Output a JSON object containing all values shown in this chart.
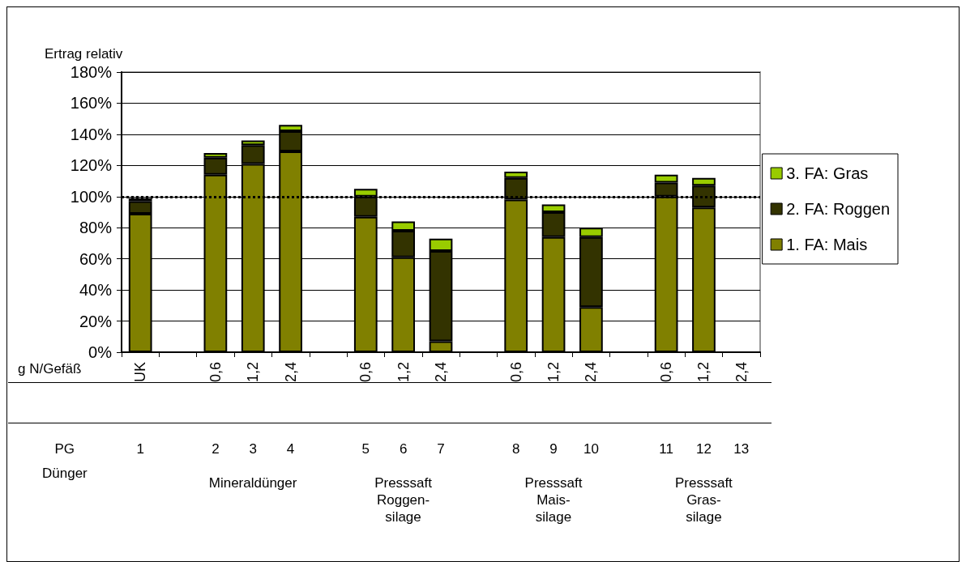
{
  "chart_data": {
    "type": "bar",
    "stacked": true,
    "ylabel": "Ertrag relativ",
    "xlabel": "g N/Gefäß",
    "categories": [
      "UK",
      null,
      "0,6",
      "1,2",
      "2,4",
      null,
      "0,6",
      "1,2",
      "2,4",
      null,
      "0,6",
      "1,2",
      "2,4",
      null,
      "0,6",
      "1,2",
      "2,4"
    ],
    "series": [
      {
        "name": "1. FA: Mais",
        "color": "#808000",
        "values": [
          89,
          null,
          114,
          121,
          129,
          null,
          87,
          61,
          7,
          null,
          98,
          74,
          29,
          null,
          100,
          93,
          null
        ]
      },
      {
        "name": "2. FA: Roggen",
        "color": "#333300",
        "values": [
          8,
          null,
          11,
          12,
          13,
          null,
          13,
          17,
          58,
          null,
          14,
          16,
          45,
          null,
          9,
          14,
          null
        ]
      },
      {
        "name": "3. FA: Gras",
        "color": "#99cc00",
        "values": [
          2,
          null,
          3,
          3,
          4,
          null,
          5,
          6,
          8,
          null,
          4,
          5,
          6,
          null,
          5,
          5,
          null
        ]
      }
    ],
    "ylim": [
      0,
      180
    ],
    "yticks": [
      {
        "value": 0,
        "label": "0%"
      },
      {
        "value": 20,
        "label": "20%"
      },
      {
        "value": 40,
        "label": "40%"
      },
      {
        "value": 60,
        "label": "60%"
      },
      {
        "value": 80,
        "label": "80%"
      },
      {
        "value": 100,
        "label": "100%"
      },
      {
        "value": 120,
        "label": "120%"
      },
      {
        "value": 140,
        "label": "140%"
      },
      {
        "value": 160,
        "label": "160%"
      },
      {
        "value": 180,
        "label": "180%"
      }
    ],
    "grid": "y",
    "legend": "right",
    "ref_lines": [
      {
        "axis": "y",
        "value": 100,
        "label": null,
        "color": "#000000",
        "line_style": "dotted"
      }
    ],
    "annotations": [
      "PG",
      "1",
      "2",
      "3",
      "4",
      "5",
      "6",
      "7",
      "8",
      "9",
      "10",
      "11",
      "12",
      "13",
      "Dünger",
      "Mineraldünger",
      "Presssaft\nRoggen-\nsilage",
      "Presssaft\nMais-\nsilage",
      "Presssaft\nGras-\nsilage"
    ]
  }
}
